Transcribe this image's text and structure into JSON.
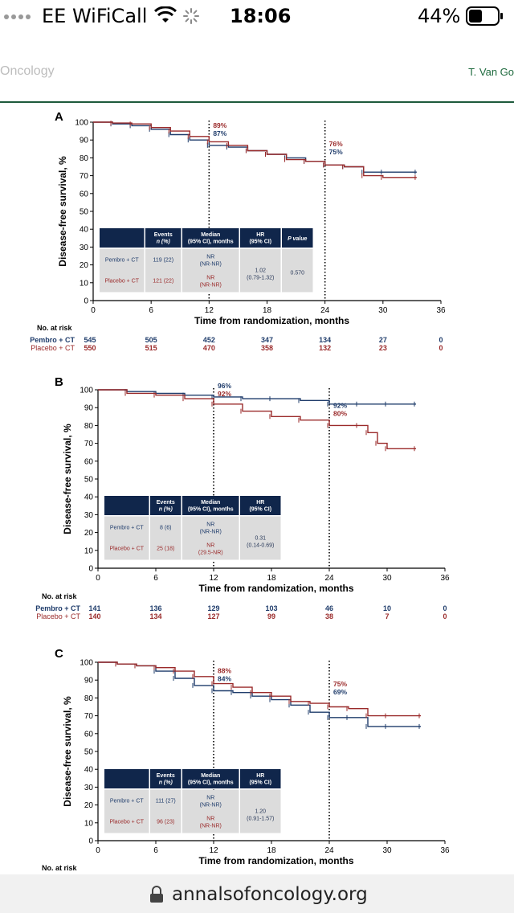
{
  "status_bar": {
    "carrier": "EE WiFiCall",
    "time": "18:06",
    "battery": "44%",
    "icons": [
      "signal-dots-icon",
      "wifi-icon",
      "loading-spinner-icon",
      "battery-icon"
    ]
  },
  "header": {
    "journal": "Oncology",
    "author": "T. Van Go"
  },
  "browser": {
    "url": "annalsofoncology.org",
    "icons": [
      "lock-icon"
    ]
  },
  "colors": {
    "pembro": "#1f3c6b",
    "placebo": "#9a2a2a",
    "table_header": "#10264b",
    "table_body": "#dcdcdc",
    "header_line": "#1e5a3c"
  },
  "common": {
    "ylabel": "Disease-free survival, %",
    "xlabel": "Time from randomization, months",
    "no_at_risk_label": "No. at risk",
    "pembro_label": "Pembro + CT",
    "placebo_label": "Placebo + CT"
  },
  "chart_data": [
    {
      "panel": "A",
      "type": "line",
      "xlim": [
        0,
        36
      ],
      "ylim": [
        0,
        100
      ],
      "x_ticks": [
        0,
        6,
        12,
        18,
        24,
        30,
        36
      ],
      "y_ticks": [
        0,
        10,
        20,
        30,
        40,
        50,
        60,
        70,
        80,
        90,
        100
      ],
      "reference_lines_x": [
        12,
        24
      ],
      "annotations": [
        {
          "x": 12,
          "placebo": "89%",
          "pembro": "87%",
          "order": "placebo-first"
        },
        {
          "x": 24,
          "placebo": "76%",
          "pembro": "75%",
          "order": "placebo-first"
        }
      ],
      "series": [
        {
          "name": "Pembro + CT",
          "color_key": "pembro",
          "x": [
            0,
            2,
            4,
            6,
            8,
            10,
            12,
            14,
            16,
            18,
            20,
            22,
            24,
            26,
            28,
            30,
            33.5
          ],
          "y": [
            100,
            99,
            98,
            96,
            93,
            90,
            87,
            86,
            84,
            82,
            80,
            78,
            76,
            75,
            72,
            72,
            72
          ]
        },
        {
          "name": "Placebo + CT",
          "color_key": "placebo",
          "x": [
            0,
            2,
            4,
            6,
            8,
            10,
            12,
            14,
            16,
            18,
            20,
            22,
            24,
            26,
            28,
            30,
            33.5
          ],
          "y": [
            100,
            99.5,
            99,
            97,
            95,
            92,
            89,
            87,
            84,
            82,
            79,
            78,
            76,
            75,
            70,
            69,
            69
          ]
        }
      ],
      "table": {
        "headers": [
          "",
          "Events n (%)",
          "Median (95% CI), months",
          "HR (95% CI)",
          "P value"
        ],
        "rows": [
          {
            "label": "Pembro + CT",
            "events": "119 (22)",
            "median": "NR (NR-NR)",
            "color_key": "pembro"
          },
          {
            "label": "Placebo + CT",
            "events": "121 (22)",
            "median": "NR (NR-NR)",
            "color_key": "placebo"
          }
        ],
        "hr": "1.02 (0.79-1.32)",
        "p_value": "0.570"
      },
      "at_risk": {
        "pembro": [
          "545",
          "505",
          "452",
          "347",
          "134",
          "27",
          "0"
        ],
        "placebo": [
          "550",
          "515",
          "470",
          "358",
          "132",
          "23",
          "0"
        ]
      }
    },
    {
      "panel": "B",
      "type": "line",
      "xlim": [
        0,
        36
      ],
      "ylim": [
        0,
        100
      ],
      "x_ticks": [
        0,
        6,
        12,
        18,
        24,
        30,
        36
      ],
      "y_ticks": [
        0,
        10,
        20,
        30,
        40,
        50,
        60,
        70,
        80,
        90,
        100
      ],
      "reference_lines_x": [
        12,
        24
      ],
      "annotations": [
        {
          "x": 12,
          "pembro": "96%",
          "placebo": "92%",
          "order": "pembro-first"
        },
        {
          "x": 24,
          "pembro": "92%",
          "placebo": "80%",
          "order": "pembro-first"
        }
      ],
      "series": [
        {
          "name": "Pembro + CT",
          "color_key": "pembro",
          "x": [
            0,
            3,
            6,
            9,
            12,
            15,
            18,
            21,
            24,
            27,
            30,
            33
          ],
          "y": [
            100,
            99,
            98,
            97,
            96,
            95,
            95,
            94,
            92,
            92,
            92,
            92
          ]
        },
        {
          "name": "Placebo + CT",
          "color_key": "placebo",
          "x": [
            0,
            3,
            6,
            9,
            12,
            15,
            18,
            21,
            24,
            27,
            28,
            29,
            30,
            33
          ],
          "y": [
            100,
            98,
            97,
            95,
            92,
            88,
            85,
            83,
            80,
            80,
            76,
            70,
            67,
            67
          ]
        }
      ],
      "table": {
        "headers": [
          "",
          "Events n (%)",
          "Median (95% CI), months",
          "HR (95% CI)"
        ],
        "rows": [
          {
            "label": "Pembro + CT",
            "events": "8 (6)",
            "median": "NR (NR-NR)",
            "color_key": "pembro"
          },
          {
            "label": "Placebo + CT",
            "events": "25 (18)",
            "median": "NR (29.5-NR)",
            "color_key": "placebo"
          }
        ],
        "hr": "0.31 (0.14-0.69)"
      },
      "at_risk": {
        "pembro": [
          "141",
          "136",
          "129",
          "103",
          "46",
          "10",
          "0"
        ],
        "placebo": [
          "140",
          "134",
          "127",
          "99",
          "38",
          "7",
          "0"
        ]
      }
    },
    {
      "panel": "C",
      "type": "line",
      "xlim": [
        0,
        36
      ],
      "ylim": [
        0,
        100
      ],
      "x_ticks": [
        0,
        6,
        12,
        18,
        24,
        30,
        36
      ],
      "y_ticks": [
        0,
        10,
        20,
        30,
        40,
        50,
        60,
        70,
        80,
        90,
        100
      ],
      "reference_lines_x": [
        12,
        24
      ],
      "annotations": [
        {
          "x": 12,
          "placebo": "88%",
          "pembro": "84%",
          "order": "placebo-first"
        },
        {
          "x": 24,
          "placebo": "75%",
          "pembro": "69%",
          "order": "placebo-first"
        }
      ],
      "series": [
        {
          "name": "Pembro + CT",
          "color_key": "pembro",
          "x": [
            0,
            2,
            4,
            6,
            8,
            10,
            12,
            14,
            16,
            18,
            20,
            22,
            24,
            26,
            28,
            30,
            33.5
          ],
          "y": [
            100,
            99,
            98,
            95,
            91,
            87,
            84,
            83,
            81,
            79,
            76,
            72,
            69,
            69,
            64,
            64,
            64
          ]
        },
        {
          "name": "Placebo + CT",
          "color_key": "placebo",
          "x": [
            0,
            2,
            4,
            6,
            8,
            10,
            12,
            14,
            16,
            18,
            20,
            22,
            24,
            26,
            28,
            30,
            33.5
          ],
          "y": [
            100,
            99,
            98,
            97,
            95,
            92,
            88,
            86,
            83,
            81,
            78,
            77,
            75,
            74,
            70,
            70,
            70
          ]
        }
      ],
      "table": {
        "headers": [
          "",
          "Events n (%)",
          "Median (95% CI), months",
          "HR (95% CI)"
        ],
        "rows": [
          {
            "label": "Pembro + CT",
            "events": "111 (27)",
            "median": "NR (NR-NR)",
            "color_key": "pembro"
          },
          {
            "label": "Placebo + CT",
            "events": "96 (23)",
            "median": "NR (NR-NR)",
            "color_key": "placebo"
          }
        ],
        "hr": "1.20 (0.91-1.57)"
      },
      "at_risk": null
    }
  ]
}
